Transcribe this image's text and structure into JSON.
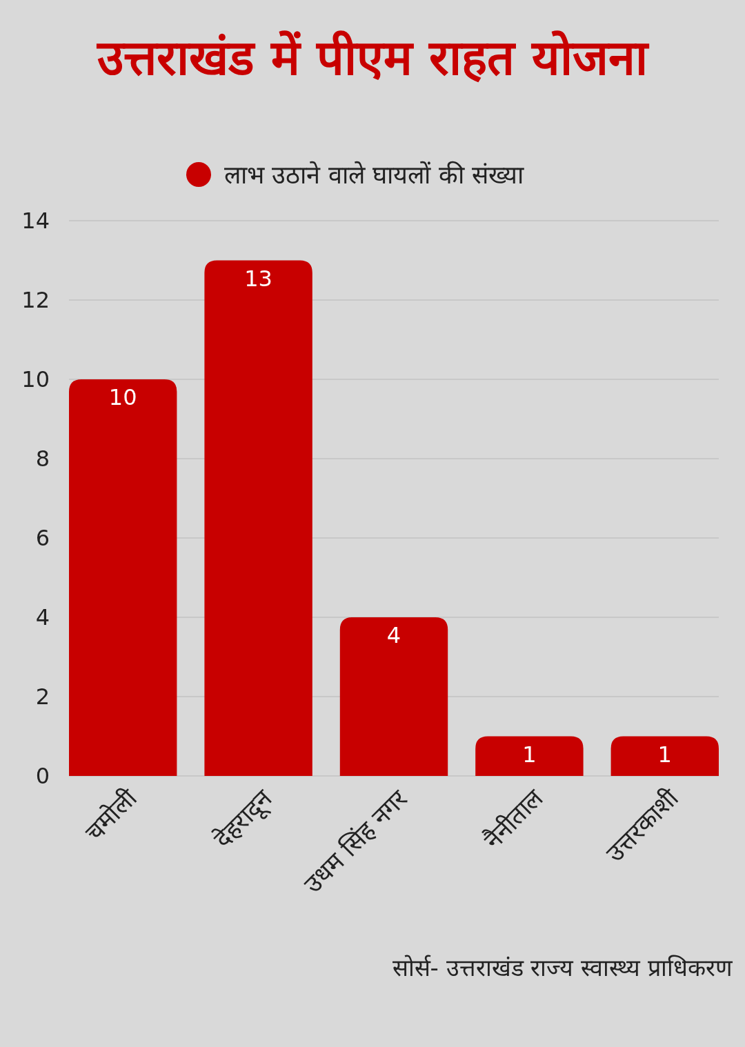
{
  "chart_data": {
    "type": "bar",
    "title": "उत्तराखंड में पीएम राहत योजना",
    "categories": [
      "चमोली",
      "देहरादून",
      "उधम सिंह नगर",
      "नैनीताल",
      "उत्तरकाशी"
    ],
    "series": [
      {
        "name": "लाभ उठाने वाले घायलों की संख्या",
        "color": "#c80000",
        "values": [
          10,
          13,
          4,
          1,
          1
        ]
      }
    ],
    "ylim": [
      0,
      14
    ],
    "yticks": [
      0,
      2,
      4,
      6,
      8,
      10,
      12,
      14
    ],
    "grid": "y",
    "legend": "top",
    "data_labels": true,
    "annotations": [
      "सोर्स- उत्तराखंड राज्य स्वास्थ्य प्राधिकरण"
    ]
  }
}
